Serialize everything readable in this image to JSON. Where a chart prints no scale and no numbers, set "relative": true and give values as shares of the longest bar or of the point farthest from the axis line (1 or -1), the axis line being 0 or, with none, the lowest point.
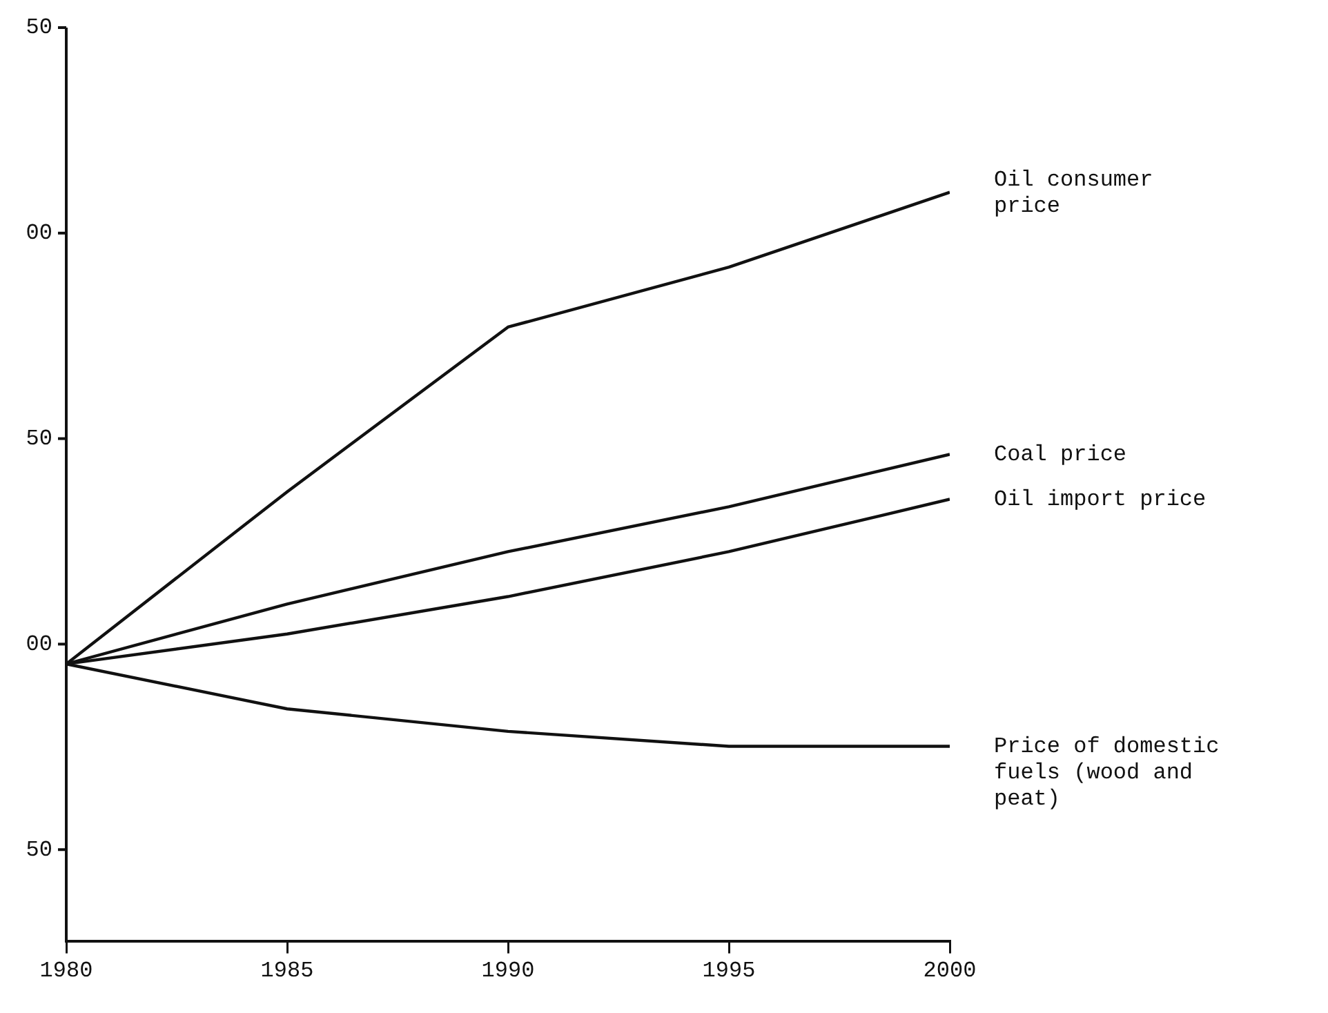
{
  "chart_data": {
    "type": "line",
    "x": [
      1980,
      1985,
      1990,
      1995,
      2000
    ],
    "series": [
      {
        "name": "Oil consumer price",
        "color": "#111111",
        "values": [
          0.37,
          0.6,
          0.82,
          0.9,
          1
        ]
      },
      {
        "name": "Coal price",
        "color": "#111111",
        "values": [
          0.37,
          0.45,
          0.52,
          0.58,
          0.65
        ]
      },
      {
        "name": "Oil import price",
        "color": "#111111",
        "values": [
          0.37,
          0.41,
          0.46,
          0.52,
          0.59
        ]
      },
      {
        "name": "Price of domestic fuels (wood and peat)",
        "color": "#111111",
        "values": [
          0.37,
          0.31,
          0.28,
          0.26,
          0.26
        ]
      }
    ],
    "relative": true,
    "xlim": [
      1980,
      2000
    ],
    "xticks": [
      1980,
      1985,
      1990,
      1995,
      2000
    ],
    "annotations": [
      "50",
      "00",
      "50",
      "00",
      "50"
    ],
    "grid": false,
    "legend": false,
    "marker": "none",
    "line_style": "solid"
  }
}
